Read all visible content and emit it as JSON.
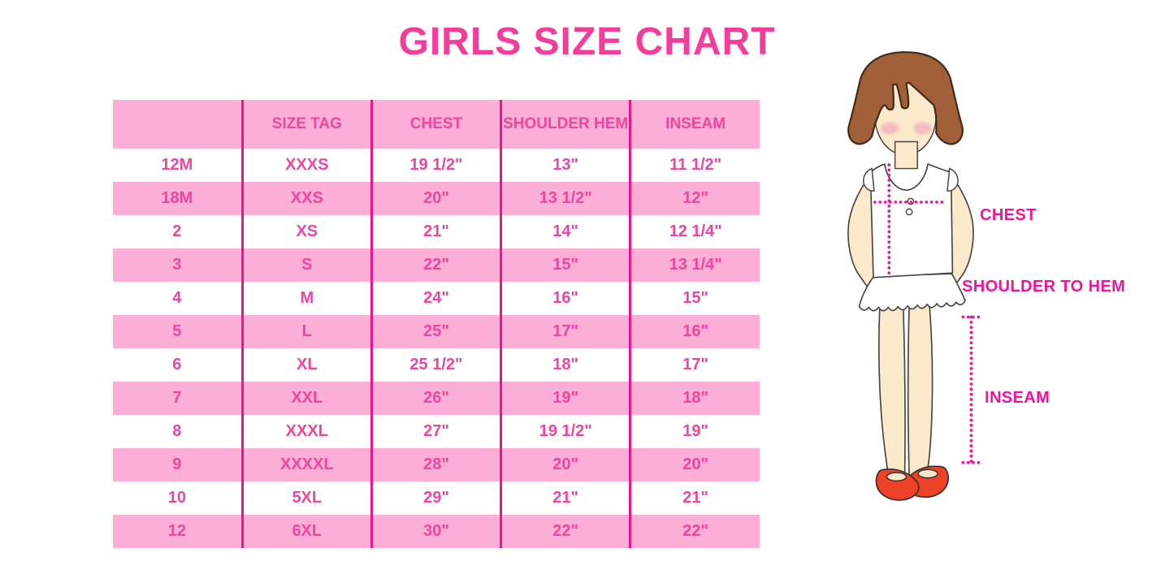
{
  "title": "GIRLS SIZE CHART",
  "chart_data": {
    "type": "table",
    "title": "GIRLS SIZE CHART",
    "columns": [
      "",
      "SIZE TAG",
      "CHEST",
      "SHOULDER HEM",
      "INSEAM"
    ],
    "rows": [
      [
        "12M",
        "XXXS",
        "19 1/2\"",
        "13\"",
        "11 1/2\""
      ],
      [
        "18M",
        "XXS",
        "20\"",
        "13 1/2\"",
        "12\""
      ],
      [
        "2",
        "XS",
        "21\"",
        "14\"",
        "12 1/4\""
      ],
      [
        "3",
        "S",
        "22\"",
        "15\"",
        "13 1/4\""
      ],
      [
        "4",
        "M",
        "24\"",
        "16\"",
        "15\""
      ],
      [
        "5",
        "L",
        "25\"",
        "17\"",
        "16\""
      ],
      [
        "6",
        "XL",
        "25 1/2\"",
        "18\"",
        "17\""
      ],
      [
        "7",
        "XXL",
        "26\"",
        "19\"",
        "18\""
      ],
      [
        "8",
        "XXXL",
        "27\"",
        "19 1/2\"",
        "19\""
      ],
      [
        "9",
        "XXXXL",
        "28\"",
        "20\"",
        "20\""
      ],
      [
        "10",
        "5XL",
        "29\"",
        "21\"",
        "21\""
      ],
      [
        "12",
        "6XL",
        "30\"",
        "22\"",
        "22\""
      ]
    ],
    "layout": {
      "header_fill": "alternating pink rows",
      "grid": "vertical column rules only"
    }
  },
  "diagram": {
    "figure": "girl-with-measurement-lines",
    "labels": {
      "chest": "CHEST",
      "shoulder_to_hem": "SHOULDER TO HEM",
      "inseam": "INSEAM"
    }
  },
  "colors": {
    "title_pink": "#f33d9b",
    "row_pink": "#fbaed6",
    "grid_magenta": "#e9158b",
    "table_text_pink": "#ee45a0",
    "label_magenta": "#f3129a",
    "hair_brown": "#a2603a",
    "skin": "#fbe9cb",
    "dress_white": "#ffffff",
    "shoe_red": "#ee4128"
  }
}
